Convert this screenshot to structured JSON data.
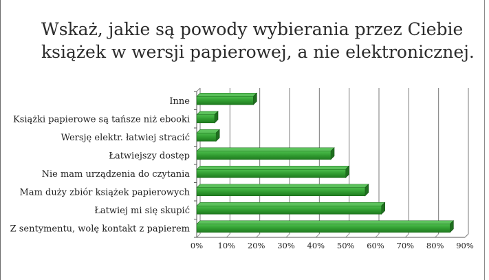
{
  "chart_data": {
    "type": "bar",
    "orientation": "horizontal",
    "title": "Wskaż, jakie są powody wybierania przez Ciebie książek w wersji papierowej, a nie elektronicznej.",
    "categories": [
      "Inne",
      "Książki papierowe są tańsze niż ebooki",
      "Wersję elektr. łatwiej stracić",
      "Łatwiejszy dostęp",
      "Nie mam urządzenia do czytania",
      "Mam duży zbiór książek papierowych",
      "Łatwiej mi się skupić",
      "Z sentymentu, wolę kontakt z papierem"
    ],
    "values": [
      19,
      6,
      6.5,
      45,
      50,
      56.5,
      62,
      85
    ],
    "xlim": [
      0,
      90
    ],
    "xticks": [
      "0%",
      "10%",
      "20%",
      "30%",
      "40%",
      "50%",
      "60%",
      "70%",
      "80%",
      "90%"
    ],
    "xlabel": "",
    "ylabel": "",
    "grid": true,
    "legend": "none",
    "bar_color": "#2f9a2f"
  }
}
